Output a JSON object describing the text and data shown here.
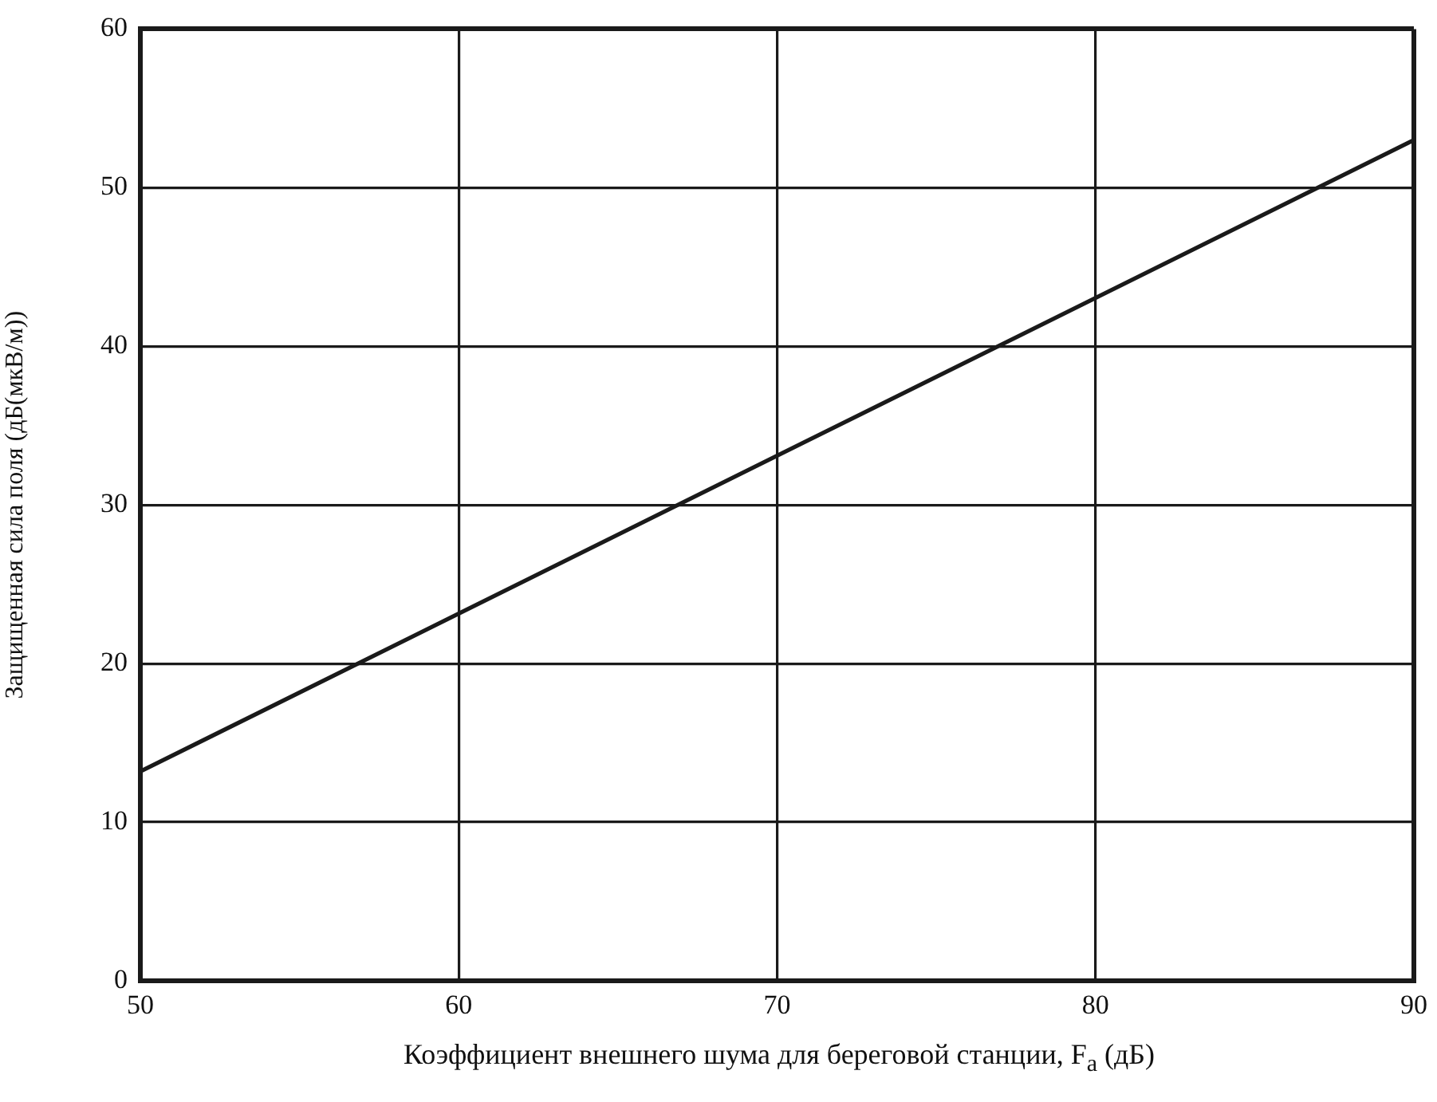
{
  "chart_data": {
    "type": "line",
    "xlabel": "Коэффициент внешнего шума для береговой станции, F$_{a}$ (дБ)",
    "ylabel": "Защищенная сила поля (дБ(мкВ/м))",
    "x": [
      50,
      90
    ],
    "series": [
      {
        "color": "#1a1a1a",
        "values": [
          13.2,
          53
        ]
      }
    ],
    "xlim": [
      50,
      90
    ],
    "ylim": [
      0,
      60
    ],
    "xticks": [
      50,
      60,
      70,
      80,
      90
    ],
    "yticks": [
      0,
      10,
      20,
      30,
      40,
      50,
      60
    ],
    "grid": true,
    "marker": "none",
    "line_style": "solid"
  }
}
